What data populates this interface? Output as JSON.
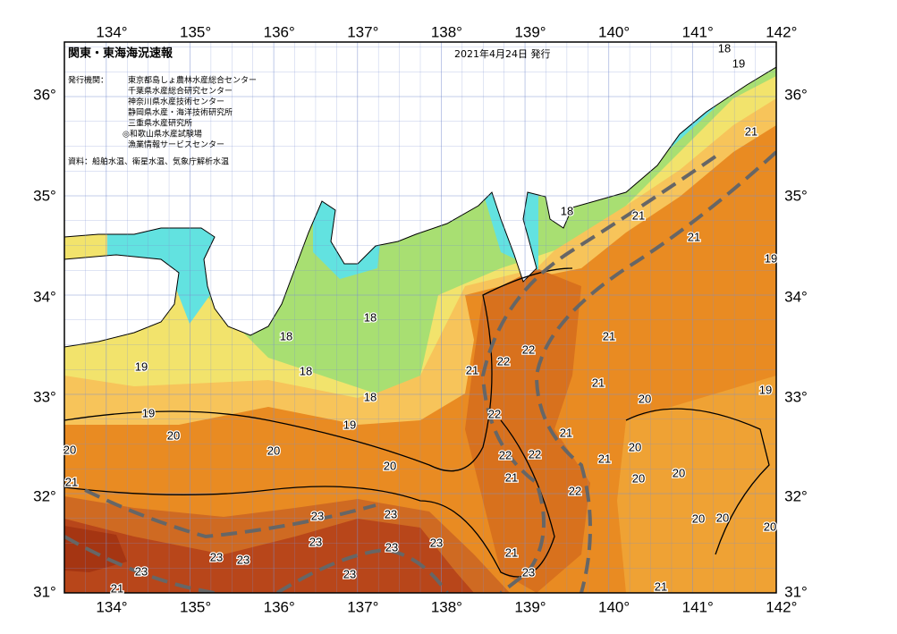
{
  "header": {
    "title": "関東・東海海況速報",
    "date": "2021年4月24日 発行",
    "issuer_label": "発行機関：",
    "issuers": [
      "東京都島しょ農林水産総合センター",
      "千葉県水産総合研究センター",
      "神奈川県水産技術センター",
      "静岡県水産・海洋技術研究所",
      "三重県水産研究所",
      "◎和歌山県水産試験場",
      "漁業情報サービスセンター"
    ],
    "source": "資料：船舶水温、衛星水温、気象庁解析水温"
  },
  "map": {
    "top_longitude_labels": [
      "134°",
      "135°",
      "136°",
      "137°",
      "138°",
      "139°",
      "140°",
      "141°",
      "142°"
    ],
    "bottom_longitude_labels": [
      "134°",
      "135°",
      "136°",
      "137°",
      "138°",
      "139°",
      "140°",
      "141°",
      "142°"
    ],
    "left_latitude_labels": [
      "36°",
      "35°",
      "34°",
      "33°",
      "32°",
      "31°"
    ],
    "right_latitude_labels": [
      "36°",
      "35°",
      "34°",
      "33°",
      "32°",
      "31°"
    ],
    "isotherm_labels": [
      "18",
      "19",
      "21",
      "18",
      "21",
      "21",
      "19",
      "18",
      "18",
      "21",
      "18",
      "19",
      "18",
      "22",
      "22",
      "21",
      "21",
      "19",
      "20",
      "19",
      "22",
      "19",
      "20",
      "21",
      "20",
      "22",
      "22",
      "21",
      "20",
      "20",
      "20",
      "20",
      "21",
      "20",
      "21",
      "22",
      "23",
      "23",
      "20",
      "20",
      "20",
      "23",
      "23",
      "23",
      "23",
      "23",
      "21",
      "23",
      "23",
      "23",
      "21",
      "21"
    ]
  }
}
